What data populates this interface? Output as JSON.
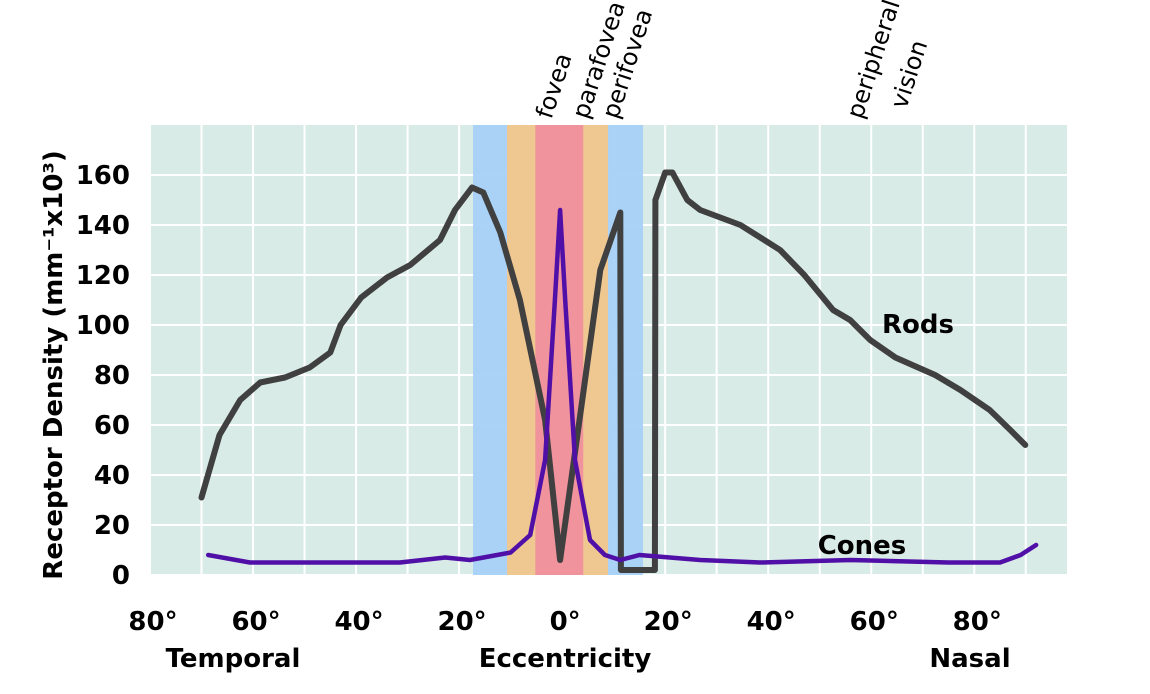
{
  "chart_data": {
    "type": "line",
    "ylabel": "Receptor Density (mm⁻¹x10³)",
    "xlabel": "Eccentricity",
    "xlabel_left": "Temporal",
    "xlabel_right": "Nasal",
    "xlim": [
      -80,
      98
    ],
    "ylim": [
      0,
      180
    ],
    "xticks": [
      {
        "value": -80,
        "label": "80°"
      },
      {
        "value": -60,
        "label": "60°"
      },
      {
        "value": -40,
        "label": "40°"
      },
      {
        "value": -20,
        "label": "20°"
      },
      {
        "value": 0,
        "label": "0°"
      },
      {
        "value": 20,
        "label": "20°"
      },
      {
        "value": 40,
        "label": "40°"
      },
      {
        "value": 60,
        "label": "60°"
      },
      {
        "value": 80,
        "label": "80°"
      }
    ],
    "x_minor_grid": [
      -70,
      -50,
      -30,
      -10,
      10,
      30,
      50,
      70,
      90
    ],
    "yticks": [
      0,
      20,
      40,
      60,
      80,
      100,
      120,
      140,
      160
    ],
    "grid": true,
    "background": "#d9ebe6",
    "regions": [
      {
        "label": "perifovea",
        "color": "#a6d1f7",
        "range": [
          -17.3,
          15.7
        ]
      },
      {
        "label": "parafovea",
        "color": "#f2c68b",
        "range": [
          -10.7,
          8.9
        ]
      },
      {
        "label": "fovea",
        "color": "#ef909e",
        "range": [
          -5.2,
          4.1
        ]
      }
    ],
    "annotations": [
      "peripheral",
      "vision"
    ],
    "series": [
      {
        "name": "Rods",
        "color": "#404040",
        "x": [
          -70,
          -66.5,
          -62.5,
          -58.6,
          -53.8,
          -49,
          -45,
          -43,
          -39,
          -34,
          -29.5,
          -23.7,
          -20.8,
          -17.5,
          -15.3,
          -12,
          -8.2,
          -3.3,
          -0.4,
          7.4,
          11.3,
          11.4,
          18,
          18.1,
          20,
          21.4,
          24.3,
          26.8,
          34.6,
          42.3,
          47,
          52.6,
          55.9,
          59.8,
          64.7,
          72.4,
          77.3,
          83,
          87,
          89.9
        ],
        "values": [
          31,
          56,
          70,
          77,
          79,
          83,
          89,
          100,
          111,
          119,
          124,
          134,
          146,
          155,
          153,
          137,
          110,
          62,
          6,
          122,
          145,
          2,
          2,
          150,
          161,
          161,
          150,
          146,
          140,
          130,
          120,
          106,
          102,
          94,
          87,
          80,
          74,
          66,
          58,
          52
        ]
      },
      {
        "name": "Cones",
        "color": "#5010a8",
        "x": [
          -68.7,
          -60.6,
          -51,
          -31.5,
          -22.7,
          -17.9,
          -10,
          -6.2,
          -3.3,
          -1.4,
          -0.4,
          0.6,
          2.5,
          5.4,
          8.3,
          11.3,
          15,
          26.8,
          38.4,
          56,
          75,
          85,
          89,
          92
        ],
        "values": [
          8,
          5,
          5,
          5,
          7,
          6,
          9,
          16,
          46,
          110,
          146,
          110,
          46,
          14,
          8,
          6,
          8,
          6,
          5,
          6,
          5,
          5,
          8,
          12
        ]
      }
    ]
  }
}
